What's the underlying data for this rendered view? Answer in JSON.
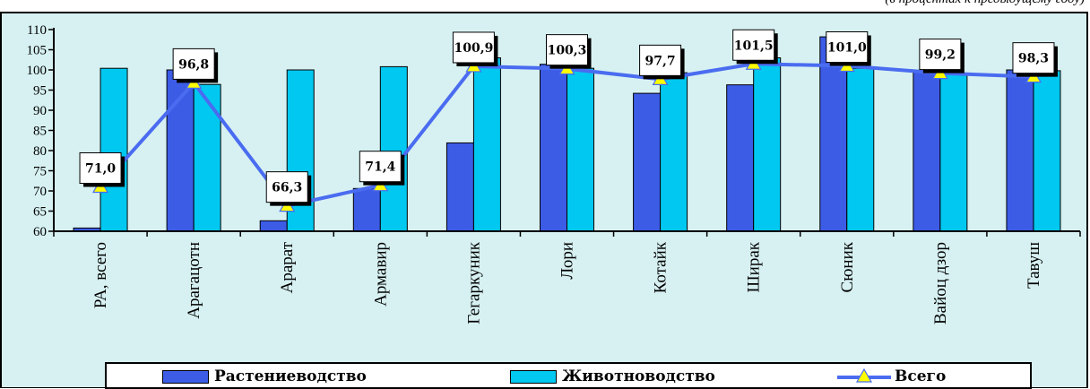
{
  "note": "(в процентах к предыдущему году)",
  "chart_data": {
    "type": "bar",
    "categories": [
      "РА, всего",
      "Арагацотн",
      "Арарат",
      "Армавир",
      "Гегаркуник",
      "Лори",
      "Котайк",
      "Ширак",
      "Сюник",
      "Вайоц дзор",
      "Тавуш"
    ],
    "series": [
      {
        "name": "Растениеводство",
        "type": "bar",
        "color": "#3c5ce6",
        "values": [
          60.8,
          100.0,
          62.6,
          70.6,
          81.9,
          101.4,
          94.2,
          96.3,
          108.2,
          99.8,
          100.0
        ]
      },
      {
        "name": "Животноводство",
        "type": "bar",
        "color": "#00c8f0",
        "values": [
          100.4,
          96.4,
          100.0,
          100.8,
          103.0,
          100.4,
          99.3,
          103.0,
          100.4,
          99.0,
          99.8
        ]
      },
      {
        "name": "Всего",
        "type": "line",
        "color": "#4a6cf0",
        "values": [
          71.0,
          96.8,
          66.3,
          71.4,
          100.9,
          100.3,
          97.7,
          101.5,
          101.0,
          99.2,
          98.3
        ]
      }
    ],
    "data_labels": [
      "71,0",
      "96,8",
      "66,3",
      "71,4",
      "100,9",
      "100,3",
      "97,7",
      "101,5",
      "101,0",
      "99,2",
      "98,3"
    ],
    "y_ticks": [
      "60",
      "65",
      "70",
      "75",
      "80",
      "85",
      "90",
      "95",
      "100",
      "105",
      "110"
    ],
    "ylim": [
      60,
      110
    ],
    "grid": false,
    "legend_position": "bottom"
  },
  "legend": {
    "items": [
      {
        "label": "Растениеводство"
      },
      {
        "label": "Животноводство"
      },
      {
        "label": "Всего"
      }
    ]
  }
}
